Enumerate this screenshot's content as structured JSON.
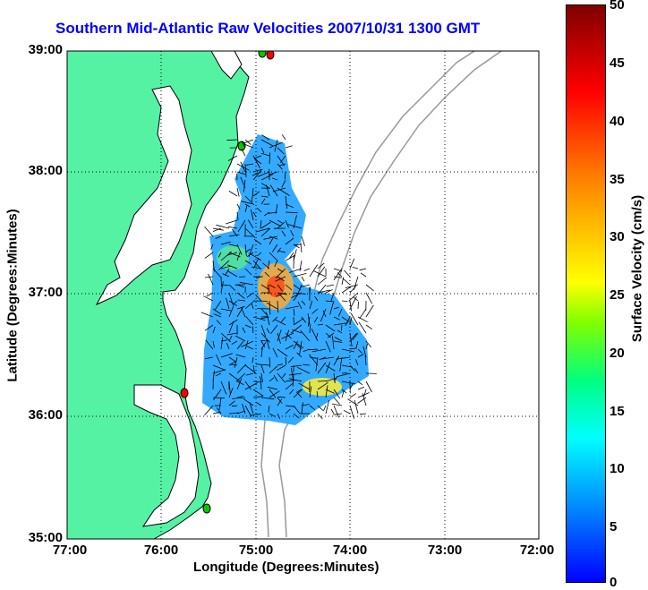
{
  "title": "Southern Mid-Atlantic Raw Velocities 2007/10/31 1300 GMT",
  "xlabel": "Longitude (Degrees:Minutes)",
  "ylabel": "Latitude (Degrees:Minutes)",
  "lat_ticks": [
    "39:00",
    "38:00",
    "37:00",
    "36:00",
    "35:00"
  ],
  "lon_ticks": [
    "77:00",
    "76:00",
    "75:00",
    "74:00",
    "73:00",
    "72:00"
  ],
  "colorbar": {
    "label": "Surface Velocity (cm/s)",
    "ticks": [
      "50",
      "45",
      "40",
      "35",
      "30",
      "25",
      "20",
      "15",
      "10",
      "5",
      "0"
    ],
    "range": [
      0,
      50
    ],
    "colormap": "jet"
  },
  "map": {
    "land_color": "#55f2a4",
    "water_color": "#ffffff",
    "bathymetry_color": "#999999",
    "grid_style": "dotted",
    "station_colors": [
      "#ff0000",
      "#00cc00"
    ]
  }
}
